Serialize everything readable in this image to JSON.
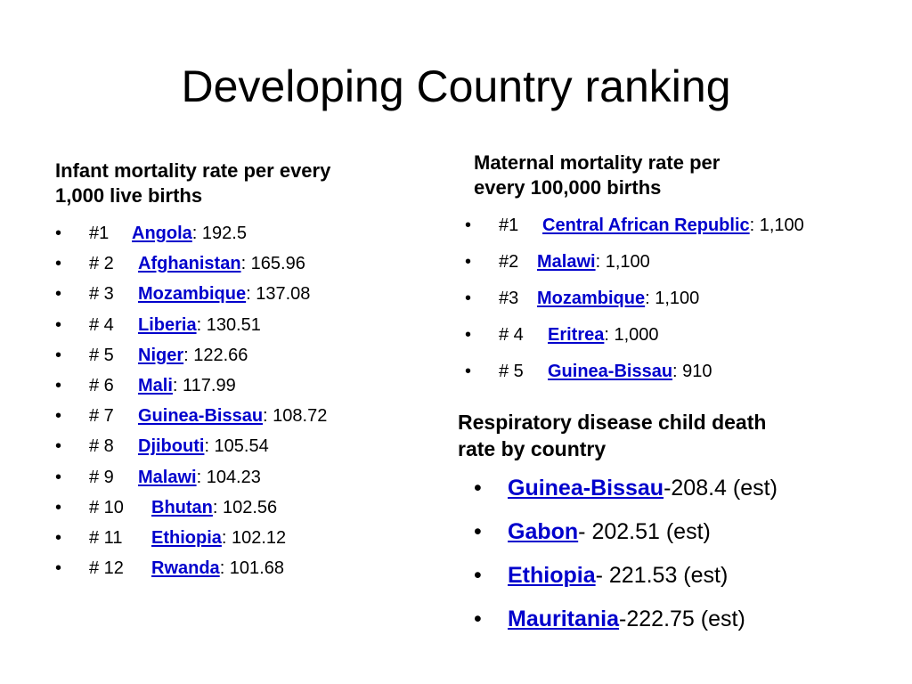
{
  "title": "Developing Country ranking",
  "infant": {
    "heading_line1": "Infant mortality rate per every",
    "heading_line2": "1,000 live births",
    "items": [
      {
        "rank": "#1",
        "country": "Angola",
        "value": ": 192.5"
      },
      {
        "rank": "# 2",
        "country": "Afghanistan",
        "value": ": 165.96"
      },
      {
        "rank": "# 3",
        "country": "Mozambique",
        "value": ": 137.08"
      },
      {
        "rank": "# 4",
        "country": "Liberia",
        "value": ": 130.51"
      },
      {
        "rank": "# 5",
        "country": "Niger",
        "value": ": 122.66"
      },
      {
        "rank": "# 6",
        "country": "Mali",
        "value": ": 117.99"
      },
      {
        "rank": "# 7",
        "country": "Guinea-Bissau",
        "value": ": 108.72"
      },
      {
        "rank": "# 8",
        "country": "Djibouti",
        "value": ": 105.54"
      },
      {
        "rank": "# 9",
        "country": "Malawi",
        "value": ": 104.23"
      },
      {
        "rank": "# 10",
        "country": "Bhutan",
        "value": ": 102.56"
      },
      {
        "rank": "# 11",
        "country": "Ethiopia",
        "value": ": 102.12"
      },
      {
        "rank": "# 12",
        "country": "Rwanda",
        "value": ": 101.68"
      }
    ]
  },
  "maternal": {
    "heading_line1": "Maternal mortality rate per",
    "heading_line2": "every 100,000 births",
    "items": [
      {
        "rank": "#1",
        "country": "Central African Republic",
        "value": ": 1,100"
      },
      {
        "rank": "#2",
        "country": "Malawi",
        "value": ": 1,100"
      },
      {
        "rank": "#3",
        "country": "Mozambique",
        "value": ": 1,100"
      },
      {
        "rank": "# 4",
        "country": "Eritrea",
        "value": ": 1,000"
      },
      {
        "rank": "# 5",
        "country": "Guinea-Bissau",
        "value": ": 910"
      }
    ]
  },
  "respiratory": {
    "heading_line1": "Respiratory disease child death",
    "heading_line2": "rate by country",
    "items": [
      {
        "country": "Guinea-Bissau",
        "value": "-208.4 (est)"
      },
      {
        "country": "Gabon",
        "value": "- 202.51 (est)"
      },
      {
        "country": "Ethiopia",
        "value": "- 221.53 (est)"
      },
      {
        "country": "Mauritania",
        "value": "-222.75 (est)"
      }
    ]
  },
  "bullet": "•",
  "colors": {
    "link": "#0000cc",
    "text": "#000000"
  }
}
